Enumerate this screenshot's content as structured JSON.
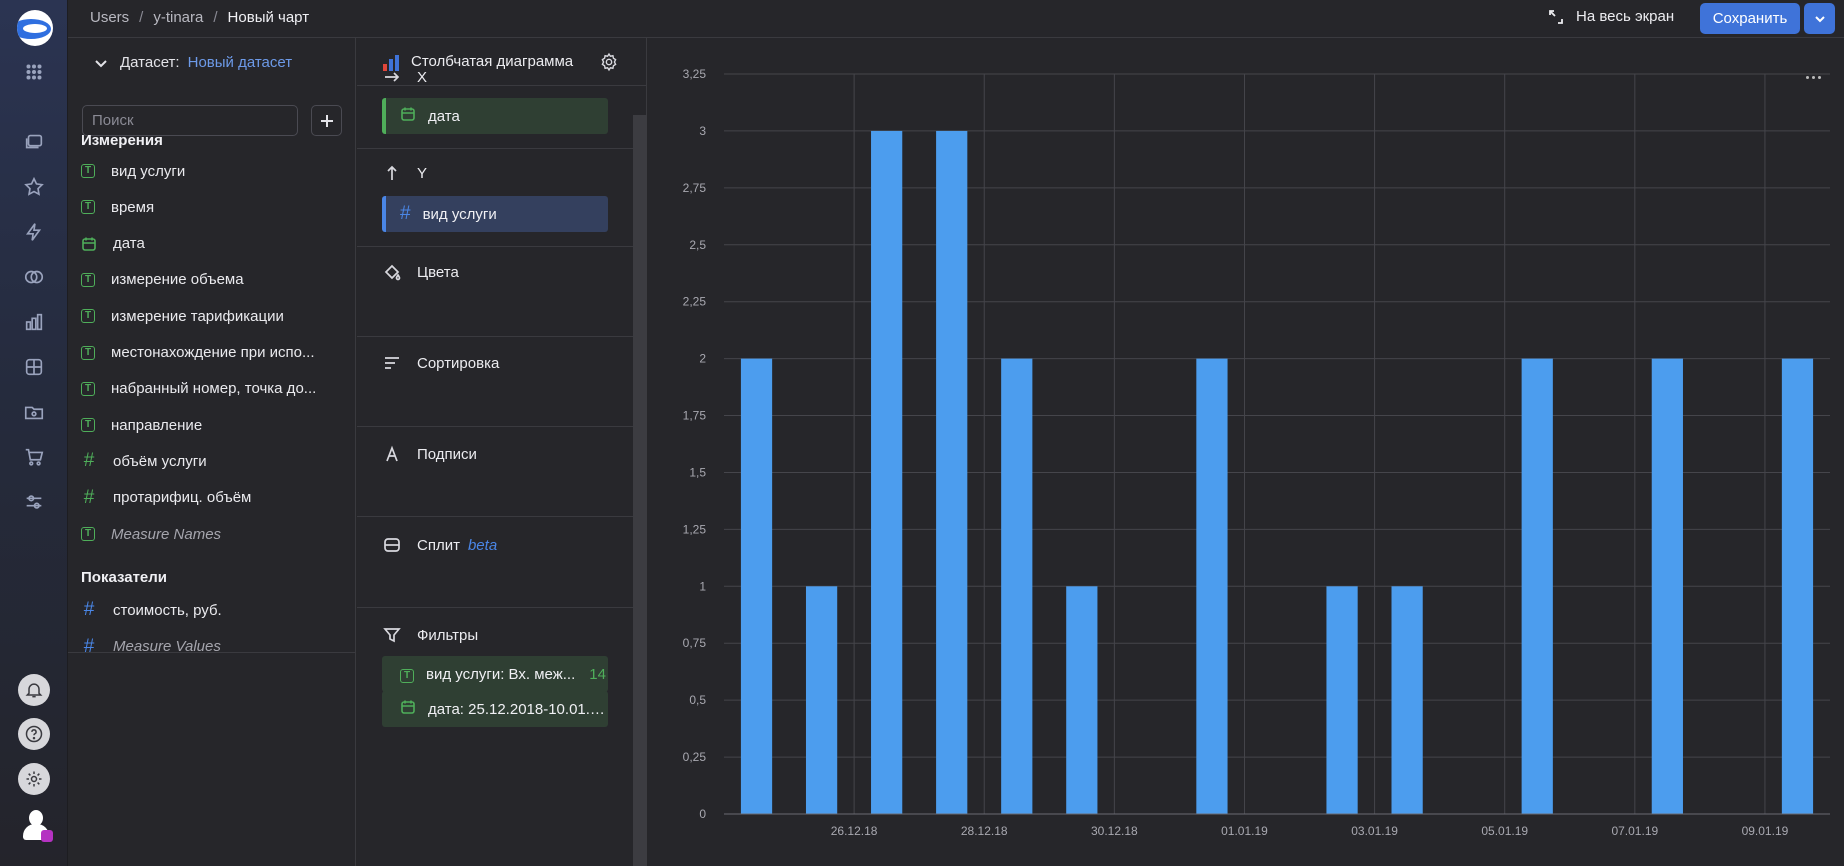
{
  "header": {
    "breadcrumbs": [
      "Users",
      "y-tinara",
      "Новый чарт"
    ],
    "fullscreen_label": "На весь экран",
    "save_label": "Сохранить"
  },
  "dataset": {
    "label": "Датасет:",
    "name": "Новый датасет",
    "search_placeholder": "Поиск",
    "dimensions_title": "Измерения",
    "dimensions": [
      {
        "label": "вид услуги",
        "icon": "text-type-icon",
        "italic": false
      },
      {
        "label": "время",
        "icon": "text-type-icon",
        "italic": false
      },
      {
        "label": "дата",
        "icon": "calendar-icon",
        "italic": false
      },
      {
        "label": "измерение объема",
        "icon": "text-type-icon",
        "italic": false
      },
      {
        "label": "измерение тарификации",
        "icon": "text-type-icon",
        "italic": false
      },
      {
        "label": "местонахождение при испо...",
        "icon": "text-type-icon",
        "italic": false
      },
      {
        "label": "набранный номер, точка до...",
        "icon": "text-type-icon",
        "italic": false
      },
      {
        "label": "направление",
        "icon": "text-type-icon",
        "italic": false
      },
      {
        "label": "объём услуги",
        "icon": "hash-icon",
        "italic": false
      },
      {
        "label": "протарифиц. объём",
        "icon": "hash-icon",
        "italic": false
      },
      {
        "label": "Measure Names",
        "icon": "text-type-icon",
        "italic": true
      }
    ],
    "measures_title": "Показатели",
    "measures": [
      {
        "label": "стоимость, руб.",
        "icon": "hash-icon",
        "italic": false
      },
      {
        "label": "Measure Values",
        "icon": "hash-icon",
        "italic": true
      }
    ]
  },
  "visualization": {
    "type_label": "Столбчатая диаграмма",
    "x_label": "X",
    "x_field": "дата",
    "y_label": "Y",
    "y_field": "вид услуги",
    "colors_label": "Цвета",
    "sort_label": "Сортировка",
    "labels_label": "Подписи",
    "split_label": "Сплит",
    "split_badge": "beta",
    "filters_label": "Фильтры",
    "filters": [
      {
        "text": "вид услуги: Вх. меж...",
        "count": "14",
        "icon": "text-type-icon"
      },
      {
        "text": "дата: 25.12.2018-10.01.2...",
        "count": "",
        "icon": "calendar-icon"
      }
    ]
  },
  "chart_data": {
    "type": "bar",
    "x_type": "date",
    "x": [
      "2018-12-25",
      "2018-12-26",
      "2018-12-27",
      "2018-12-28",
      "2018-12-29",
      "2018-12-30",
      "2018-12-31",
      "2019-01-01",
      "2019-01-02",
      "2019-01-03",
      "2019-01-04",
      "2019-01-05",
      "2019-01-06",
      "2019-01-07",
      "2019-01-08",
      "2019-01-09",
      "2019-01-10"
    ],
    "values": [
      2,
      1,
      3,
      3,
      2,
      1,
      0,
      2,
      0,
      1,
      1,
      0,
      2,
      0,
      2,
      0,
      2
    ],
    "x_tick_labels": [
      "26.12.18",
      "28.12.18",
      "30.12.18",
      "01.01.19",
      "03.01.19",
      "05.01.19",
      "07.01.19",
      "09.01.19"
    ],
    "y_tick_labels": [
      "0",
      "0,25",
      "0,5",
      "0,75",
      "1",
      "1,25",
      "1,5",
      "1,75",
      "2",
      "2,25",
      "2,5",
      "2,75",
      "3",
      "3,25"
    ],
    "ylim": [
      0,
      3.25
    ],
    "grid": true,
    "color": "#4c9dee"
  },
  "colors": {
    "accent": "#3f73d9",
    "bar": "#4c9dee",
    "green": "#4fae5a",
    "link": "#6d9ae8"
  }
}
